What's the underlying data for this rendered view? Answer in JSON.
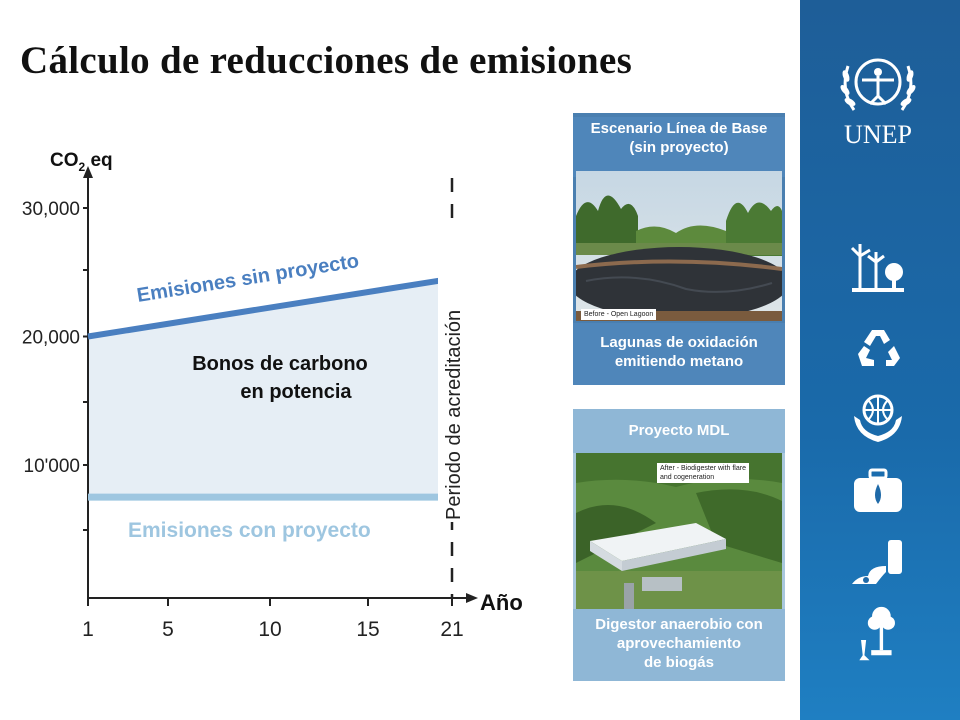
{
  "title": "Cálculo de reducciones de emisiones",
  "chart_data": {
    "type": "area",
    "ylabel": "CO2 eq",
    "xlabel": "Año",
    "y_tick_labels": [
      "30,000",
      "20,000",
      "10'000"
    ],
    "y_tick_values": [
      30000,
      20000,
      10000
    ],
    "x_tick_labels": [
      "1",
      "5",
      "10",
      "15",
      "21"
    ],
    "x_tick_values": [
      1,
      5,
      10,
      15,
      21
    ],
    "xlim": [
      1,
      21
    ],
    "series": [
      {
        "name": "Emisiones sin proyecto",
        "x": [
          1,
          21
        ],
        "values": [
          20000,
          24500
        ],
        "color": "#4a7fc0"
      },
      {
        "name": "Emisiones con proyecto",
        "x": [
          1,
          21
        ],
        "values": [
          7500,
          7500
        ],
        "color": "#9ec6e0"
      }
    ],
    "area_label": [
      "Bonos de carbono",
      "en potencia"
    ],
    "area_color": "#e6eef5",
    "vertical_line": {
      "x": 21,
      "label": "Periodo de acreditación"
    }
  },
  "cards": {
    "baseline": {
      "header": [
        "Escenario Línea de Base",
        "(sin proyecto)"
      ],
      "caption": "Before - Open Lagoon",
      "footer": [
        "Lagunas de oxidación",
        "emitiendo metano"
      ]
    },
    "project": {
      "header": "Proyecto MDL",
      "caption": [
        "After - Biodigester with flare",
        "and cogeneration"
      ],
      "footer": [
        "Digestor anaerobio con",
        "aprovechamiento",
        "de biogás"
      ]
    }
  },
  "sidebar": {
    "logo_text": "UNEP",
    "icons": [
      "wind-tree-icon",
      "recycle-icon",
      "hands-globe-icon",
      "first-aid-kit-icon",
      "spill-barrel-icon",
      "tree-chemical-icon"
    ]
  }
}
